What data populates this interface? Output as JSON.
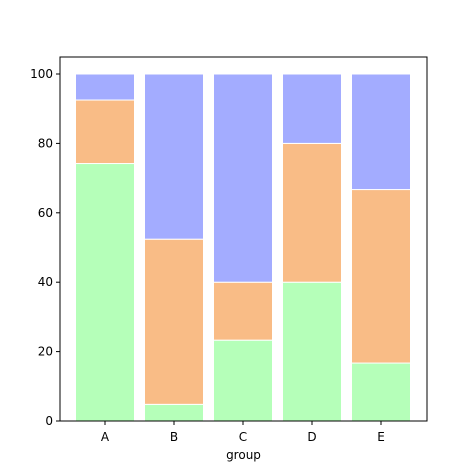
{
  "chart_data": {
    "type": "bar",
    "stacked": true,
    "percent": true,
    "categories": [
      "A",
      "B",
      "C",
      "D",
      "E"
    ],
    "xlabel": "group",
    "ylabel": "",
    "ylim": [
      0,
      100
    ],
    "yticks": [
      0,
      20,
      40,
      60,
      80,
      100
    ],
    "grid": false,
    "legend": "none",
    "series": [
      {
        "color": "#b5ffb9",
        "values": [
          74.2,
          4.8,
          23.3,
          40.0,
          16.7
        ]
      },
      {
        "color": "#f9bc86",
        "values": [
          18.3,
          47.6,
          16.7,
          40.0,
          50.0
        ]
      },
      {
        "color": "#a3acff",
        "values": [
          7.5,
          47.6,
          60.0,
          20.0,
          33.3
        ]
      }
    ]
  }
}
